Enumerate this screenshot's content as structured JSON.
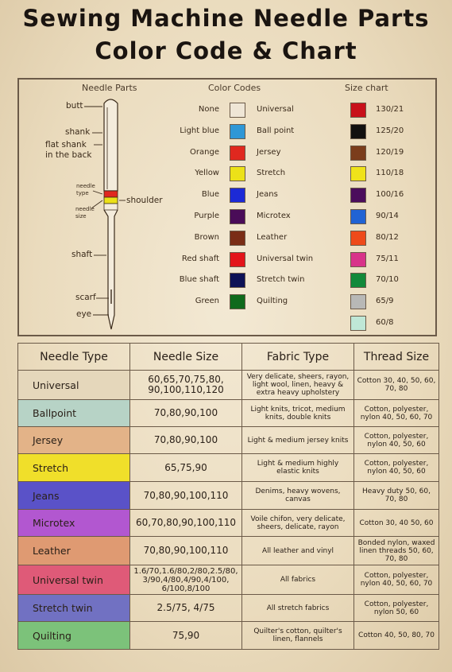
{
  "title": {
    "line1": "Sewing Machine Needle Parts",
    "line2": "Color Code & Chart"
  },
  "headers": {
    "needle_parts": "Needle Parts",
    "color_codes": "Color Codes",
    "size_chart": "Size chart"
  },
  "needle_parts": {
    "butt": "butt",
    "shank": "shank",
    "flat_shank_1": "flat shank",
    "flat_shank_2": "in the back",
    "needle_type_1": "needle",
    "needle_type_2": "type",
    "needle_size_1": "needle",
    "needle_size_2": "size",
    "shoulder": "shoulder",
    "shaft": "shaft",
    "scarf": "scarf",
    "eye": "eye"
  },
  "color_codes": [
    {
      "name": "None",
      "color": "#efe6d6",
      "type": "Universal"
    },
    {
      "name": "Light blue",
      "color": "#2f97d6",
      "type": "Ball point"
    },
    {
      "name": "Orange",
      "color": "#e0281f",
      "type": "Jersey"
    },
    {
      "name": "Yellow",
      "color": "#ece118",
      "type": "Stretch"
    },
    {
      "name": "Blue",
      "color": "#1c2ad6",
      "type": "Jeans"
    },
    {
      "name": "Purple",
      "color": "#4a0c58",
      "type": "Microtex"
    },
    {
      "name": "Brown",
      "color": "#7a2d16",
      "type": "Leather"
    },
    {
      "name": "Red shaft",
      "color": "#e3141a",
      "type": "Universal twin"
    },
    {
      "name": "Blue shaft",
      "color": "#0e1256",
      "type": "Stretch twin"
    },
    {
      "name": "Green",
      "color": "#0f6a1c",
      "type": "Quilting"
    }
  ],
  "size_chart": [
    {
      "label": "130/21",
      "color": "#c8101a"
    },
    {
      "label": "125/20",
      "color": "#121010"
    },
    {
      "label": "120/19",
      "color": "#7b3d1c"
    },
    {
      "label": "110/18",
      "color": "#efe21a"
    },
    {
      "label": "100/16",
      "color": "#4b0d5c"
    },
    {
      "label": "90/14",
      "color": "#2163d4"
    },
    {
      "label": "80/12",
      "color": "#ee4a1a"
    },
    {
      "label": "75/11",
      "color": "#d8338a"
    },
    {
      "label": "70/10",
      "color": "#12893a"
    },
    {
      "label": "65/9",
      "color": "#b8b8b6"
    },
    {
      "label": "60/8",
      "color": "#bfe7d6"
    }
  ],
  "table": {
    "columns": [
      "Needle Type",
      "Needle Size",
      "Fabric Type",
      "Thread Size"
    ],
    "rows": [
      {
        "type": "Universal",
        "bg": "#e5d7bb",
        "size": "60,65,70,75,80, 90,100,110,120",
        "fabric": "Very delicate, sheers, rayon, light wool, linen, heavy & extra heavy upholstery",
        "thread": "Cotton 30, 40, 50, 60, 70, 80"
      },
      {
        "type": "Ballpoint",
        "bg": "#b7d3c6",
        "size": "70,80,90,100",
        "fabric": "Light knits, tricot, medium knits, double knits",
        "thread": "Cotton, polyester, nylon 40, 50, 60, 70"
      },
      {
        "type": "Jersey",
        "bg": "#e3b388",
        "size": "70,80,90,100",
        "fabric": "Light & medium jersey knits",
        "thread": "Cotton, polyester, nylon 40, 50, 60"
      },
      {
        "type": "Stretch",
        "bg": "#f0df2a",
        "size": "65,75,90",
        "fabric": "Light & medium highly elastic knits",
        "thread": "Cotton, polyester, nylon 40, 50, 60"
      },
      {
        "type": "Jeans",
        "bg": "#5a52c8",
        "size": "70,80,90,100,110",
        "fabric": "Denims, heavy wovens, canvas",
        "thread": "Heavy duty 50, 60, 70, 80"
      },
      {
        "type": "Microtex",
        "bg": "#b257d0",
        "size": "60,70,80,90,100,110",
        "fabric": "Voile chifon, very delicate, sheers, delicate, rayon",
        "thread": "Cotton 30, 40 50, 60"
      },
      {
        "type": "Leather",
        "bg": "#df9a72",
        "size": "70,80,90,100,110",
        "fabric": "All leather and vinyl",
        "thread": "Bonded nylon, waxed linen threads 50, 60, 70, 80"
      },
      {
        "type": "Universal twin",
        "bg": "#df5a78",
        "size": "1.6/70,1.6/80,2/80,2.5/80, 3/90,4/80,4/90,4/100, 6/100,8/100",
        "fabric": "All fabrics",
        "thread": "Cotton, polyester, nylon 40, 50, 60, 70"
      },
      {
        "type": "Stretch twin",
        "bg": "#7171c2",
        "size": "2.5/75, 4/75",
        "fabric": "All stretch fabrics",
        "thread": "Cotton, polyester, nylon 50, 60"
      },
      {
        "type": "Quilting",
        "bg": "#7cc27a",
        "size": "75,90",
        "fabric": "Quilter's cotton, quilter's linen, flannels",
        "thread": "Cotton 40, 50, 80, 70"
      }
    ]
  }
}
